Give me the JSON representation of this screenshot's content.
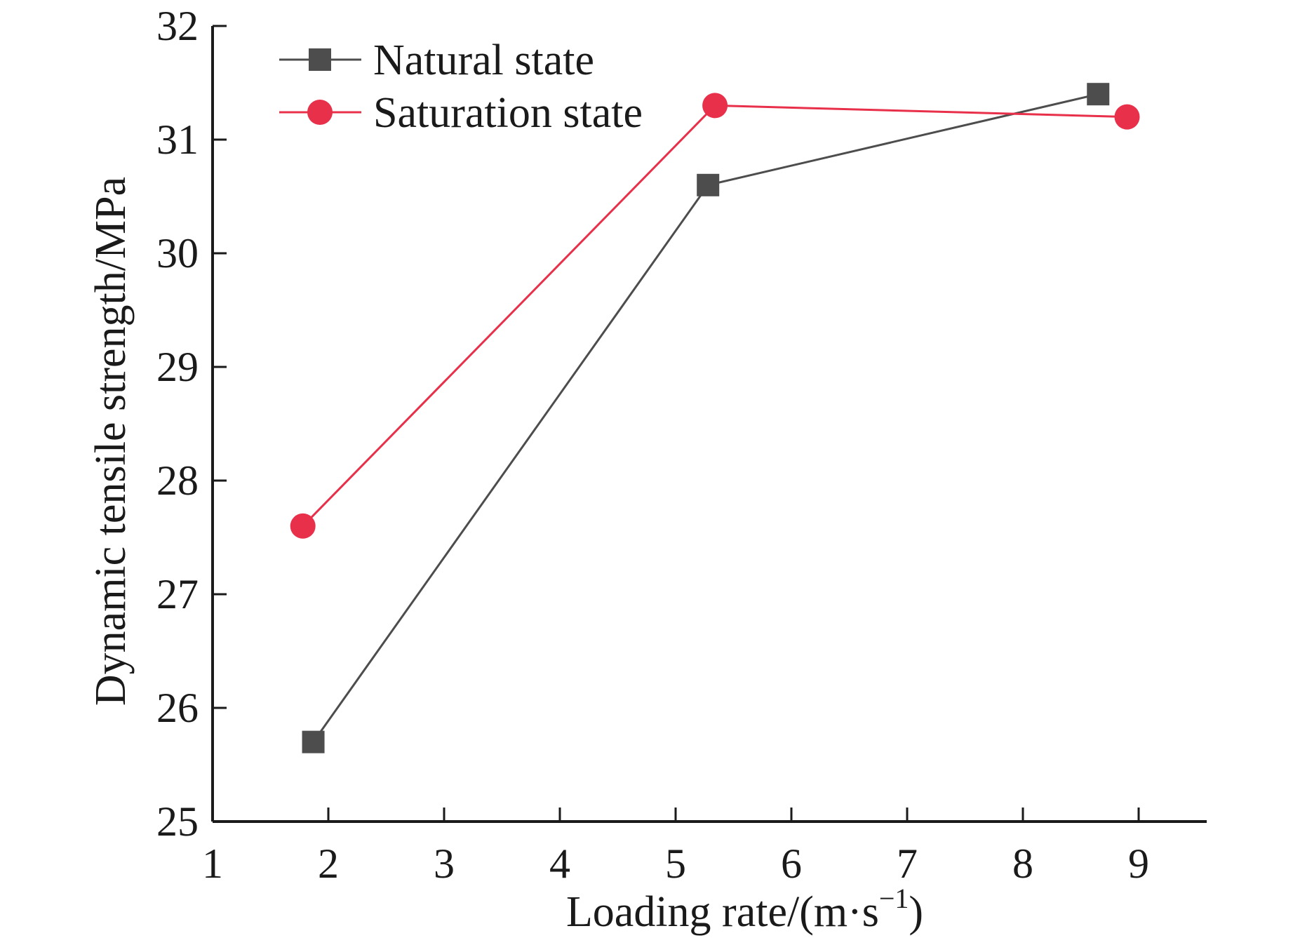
{
  "chart_data": {
    "type": "line",
    "title": "",
    "xlabel": "Loading rate/(m·s",
    "xlabel_sup": "−1",
    "xlabel_close": ")",
    "ylabel": "Dynamic tensile strength/MPa",
    "xlim": [
      1,
      9.5
    ],
    "ylim": [
      25,
      32
    ],
    "xticks": [
      "1",
      "2",
      "3",
      "4",
      "5",
      "6",
      "7",
      "8",
      "9"
    ],
    "yticks": [
      "25",
      "26",
      "27",
      "28",
      "29",
      "30",
      "31",
      "32"
    ],
    "grid": false,
    "legend_position": "top-left",
    "series": [
      {
        "name": "Natural state",
        "color": "#4d4d4d",
        "marker": "square",
        "x": [
          1.87,
          5.28,
          8.65
        ],
        "y": [
          25.7,
          30.6,
          31.4
        ]
      },
      {
        "name": "Saturation state",
        "color": "#e8304a",
        "marker": "circle",
        "x": [
          1.78,
          5.34,
          8.9
        ],
        "y": [
          27.6,
          31.3,
          31.2
        ]
      }
    ]
  }
}
